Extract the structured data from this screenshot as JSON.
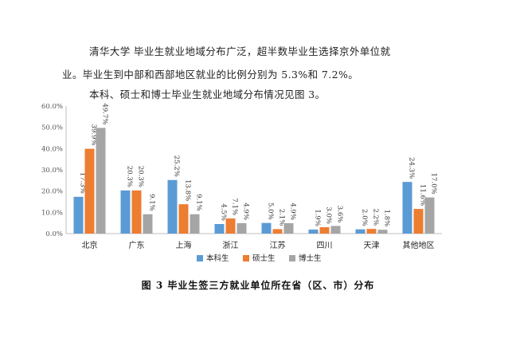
{
  "text": {
    "p1": "清华大学 毕业生就业地域分布广泛，超半数毕业生选择京外单位就",
    "p2": "业。毕业生到中部和西部地区就业的比例分别为 5.3%和 7.2%。",
    "p3": "本科、硕士和博士毕业生就业地域分布情况见图 3。",
    "caption": "图 3 毕业生签三方就业单位所在省（区、市）分布"
  },
  "chart_data": {
    "type": "bar",
    "categories": [
      "北京",
      "广东",
      "上海",
      "浙江",
      "江苏",
      "四川",
      "天津",
      "其他地区"
    ],
    "series": [
      {
        "name": "本科生",
        "color": "#5b9bd5",
        "values": [
          17.3,
          20.3,
          25.2,
          4.5,
          5.0,
          1.9,
          2.0,
          24.3
        ],
        "labels": [
          "17.3%",
          "20.3%",
          "25.2%",
          "4.5%",
          "5.0%",
          "1.9%",
          "2.0%",
          "24.3%"
        ]
      },
      {
        "name": "硕士生",
        "color": "#ed7d31",
        "values": [
          39.9,
          20.3,
          13.8,
          7.1,
          2.1,
          3.0,
          2.2,
          11.6
        ],
        "labels": [
          "39.9%",
          "20.3%",
          "13.8%",
          "7.1%",
          "2.1%",
          "3.0%",
          "2.2%",
          "11.6%"
        ]
      },
      {
        "name": "博士生",
        "color": "#a5a5a5",
        "values": [
          49.7,
          9.1,
          9.1,
          4.9,
          4.9,
          3.6,
          1.8,
          17.0
        ],
        "labels": [
          "49.7%",
          "9.1%",
          "9.1%",
          "4.9%",
          "4.9%",
          "3.6%",
          "1.8%",
          "17.0%"
        ]
      }
    ],
    "ylim": [
      0,
      60
    ],
    "yticks": [
      "0.0%",
      "10.0%",
      "20.0%",
      "30.0%",
      "40.0%",
      "50.0%",
      "60.0%"
    ],
    "grid": false,
    "legend_position": "bottom"
  }
}
